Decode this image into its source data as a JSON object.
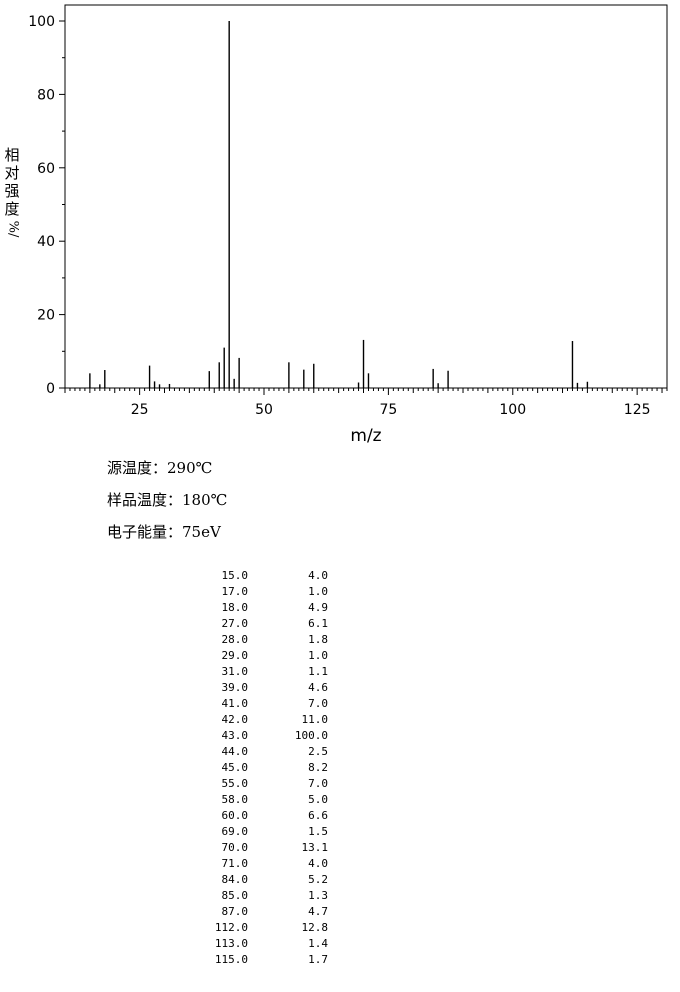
{
  "chart_data": {
    "type": "bar",
    "xlabel": "m/z",
    "ylabel": "相对强度",
    "ylabel_unit": "%/",
    "xlim": [
      10,
      131
    ],
    "ylim": [
      0,
      100
    ],
    "x_ticks": [
      "25",
      "50",
      "75",
      "100",
      "125"
    ],
    "y_ticks": [
      "0",
      "20",
      "40",
      "60",
      "80",
      "100"
    ],
    "grid": false,
    "peaks": [
      {
        "mz": "15.0",
        "abundance": "4.0"
      },
      {
        "mz": "17.0",
        "abundance": "1.0"
      },
      {
        "mz": "18.0",
        "abundance": "4.9"
      },
      {
        "mz": "27.0",
        "abundance": "6.1"
      },
      {
        "mz": "28.0",
        "abundance": "1.8"
      },
      {
        "mz": "29.0",
        "abundance": "1.0"
      },
      {
        "mz": "31.0",
        "abundance": "1.1"
      },
      {
        "mz": "39.0",
        "abundance": "4.6"
      },
      {
        "mz": "41.0",
        "abundance": "7.0"
      },
      {
        "mz": "42.0",
        "abundance": "11.0"
      },
      {
        "mz": "43.0",
        "abundance": "100.0"
      },
      {
        "mz": "44.0",
        "abundance": "2.5"
      },
      {
        "mz": "45.0",
        "abundance": "8.2"
      },
      {
        "mz": "55.0",
        "abundance": "7.0"
      },
      {
        "mz": "58.0",
        "abundance": "5.0"
      },
      {
        "mz": "60.0",
        "abundance": "6.6"
      },
      {
        "mz": "69.0",
        "abundance": "1.5"
      },
      {
        "mz": "70.0",
        "abundance": "13.1"
      },
      {
        "mz": "71.0",
        "abundance": "4.0"
      },
      {
        "mz": "84.0",
        "abundance": "5.2"
      },
      {
        "mz": "85.0",
        "abundance": "1.3"
      },
      {
        "mz": "87.0",
        "abundance": "4.7"
      },
      {
        "mz": "112.0",
        "abundance": "12.8"
      },
      {
        "mz": "113.0",
        "abundance": "1.4"
      },
      {
        "mz": "115.0",
        "abundance": "1.7"
      }
    ]
  },
  "conditions": {
    "source_temp": "源温度：290℃",
    "sample_temp": "样品温度：180℃",
    "electron_energy": "电子能量：75eV"
  }
}
